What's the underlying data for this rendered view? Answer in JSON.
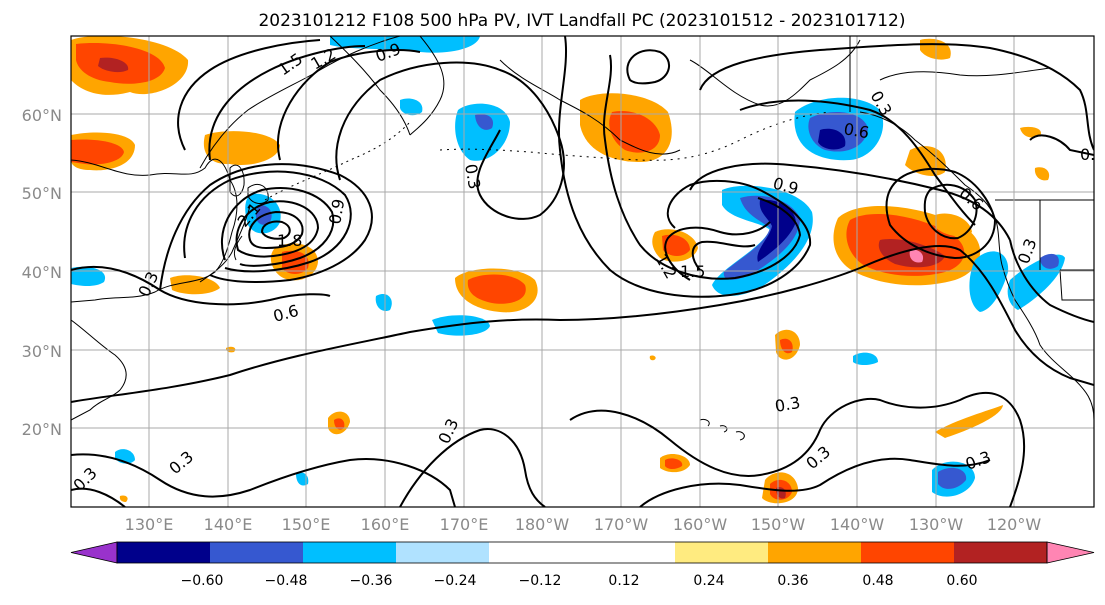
{
  "title": "2023101212 F108 500 hPa PV, IVT Landfall PC (2023101512 - 2023101712)",
  "map": {
    "lat_labels": [
      "60°N",
      "50°N",
      "40°N",
      "30°N",
      "20°N"
    ],
    "lon_labels": [
      "130°E",
      "140°E",
      "150°E",
      "160°E",
      "170°E",
      "180°W",
      "170°W",
      "160°W",
      "150°W",
      "140°W",
      "130°W",
      "120°W"
    ],
    "contour_labels": [
      "1.5",
      "1.2",
      "0.9",
      "0.3",
      "0.6",
      "1.8",
      "2.1",
      "0.9",
      "1.2",
      "1.5",
      "0.9",
      "0.6",
      "0.3",
      "0.6",
      "0.3",
      "0.6",
      "0.3",
      "0.3",
      "0.3",
      "0.3",
      "0.3",
      "0.3",
      "0.3",
      "1.2",
      "0.3",
      "0.3"
    ]
  },
  "colorbar": {
    "colors": [
      "#9932cc",
      "#00008b",
      "#3658d0",
      "#00bfff",
      "#b0e2ff",
      "#ffffff",
      "#ffffff",
      "#ffeb80",
      "#ffa500",
      "#ff4500",
      "#b22222",
      "#ff85b3"
    ],
    "tick_labels": [
      "−0.60",
      "−0.48",
      "−0.36",
      "−0.24",
      "−0.12",
      "0.12",
      "0.24",
      "0.36",
      "0.48",
      "0.60"
    ]
  }
}
